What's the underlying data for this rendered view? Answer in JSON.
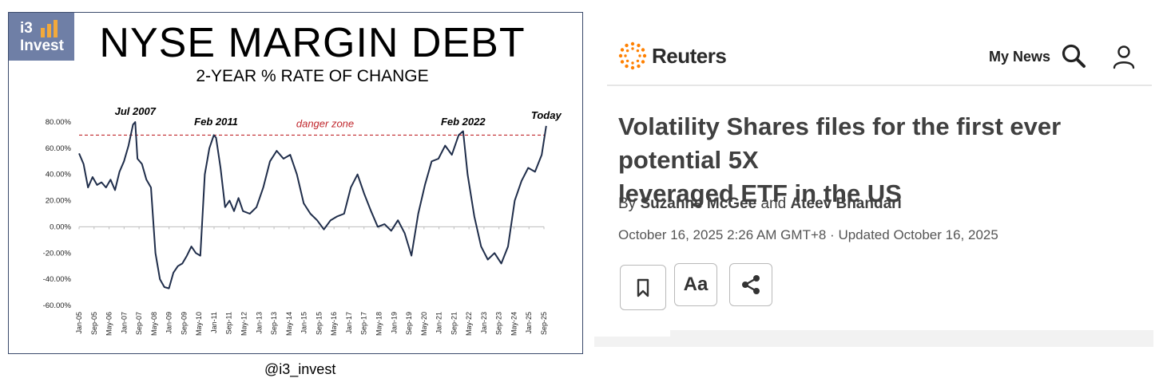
{
  "chart": {
    "logo_line1": "i3",
    "logo_line2": "Invest",
    "title": "NYSE MARGIN DEBT",
    "subtitle": "2-YEAR % RATE OF CHANGE",
    "caption_partial": "@i3_invest",
    "colors": {
      "line": "#1f2d4a",
      "danger": "#c0262c",
      "logo_bg": "#6f7fa6",
      "logo_bars": "#f2a93b"
    }
  },
  "chart_data": {
    "type": "line",
    "title": "NYSE MARGIN DEBT",
    "subtitle": "2-YEAR % RATE OF CHANGE",
    "yticks": [
      "80.00%",
      "60.00%",
      "40.00%",
      "20.00%",
      "0.00%",
      "-20.00%",
      "-40.00%",
      "-60.00%"
    ],
    "ylim": [
      -60,
      80
    ],
    "xticks": [
      "Jan-05",
      "Sep-05",
      "May-06",
      "Jan-07",
      "Sep-07",
      "May-08",
      "Jan-09",
      "Sep-09",
      "May-10",
      "Jan-11",
      "Sep-11",
      "May-12",
      "Jan-13",
      "Sep-13",
      "May-14",
      "Jan-15",
      "Sep-15",
      "May-16",
      "Jan-17",
      "Sep-17",
      "May-18",
      "Jan-19",
      "Sep-19",
      "May-20",
      "Jan-21",
      "Sep-21",
      "May-22",
      "Jan-23",
      "Sep-23",
      "May-24",
      "Jan-25",
      "Sep-25"
    ],
    "danger_level": 70,
    "danger_label": "danger zone",
    "annotations": [
      {
        "text": "Jul 2007",
        "x": 2007.5,
        "y": 80
      },
      {
        "text": "Feb 2011",
        "x": 2011.1,
        "y": 72
      },
      {
        "text": "Feb 2022",
        "x": 2022.1,
        "y": 72
      },
      {
        "text": "Today",
        "x": 2025.8,
        "y": 77
      }
    ],
    "series": [
      {
        "x": [
          2005.0,
          2005.2,
          2005.4,
          2005.6,
          2005.8,
          2006.0,
          2006.2,
          2006.4,
          2006.6,
          2006.8,
          2007.0,
          2007.2,
          2007.4,
          2007.5,
          2007.6,
          2007.8,
          2008.0,
          2008.2,
          2008.4,
          2008.6,
          2008.8,
          2009.0,
          2009.2,
          2009.4,
          2009.6,
          2009.8,
          2010.0,
          2010.2,
          2010.4,
          2010.6,
          2010.8,
          2011.0,
          2011.1,
          2011.3,
          2011.5,
          2011.7,
          2011.9,
          2012.1,
          2012.3,
          2012.6,
          2012.9,
          2013.2,
          2013.5,
          2013.8,
          2014.1,
          2014.4,
          2014.7,
          2015.0,
          2015.3,
          2015.6,
          2015.9,
          2016.2,
          2016.5,
          2016.8,
          2017.1,
          2017.4,
          2017.7,
          2018.0,
          2018.3,
          2018.6,
          2018.9,
          2019.2,
          2019.5,
          2019.8,
          2020.1,
          2020.4,
          2020.7,
          2021.0,
          2021.3,
          2021.6,
          2021.9,
          2022.1,
          2022.3,
          2022.6,
          2022.9,
          2023.2,
          2023.5,
          2023.8,
          2024.1,
          2024.4,
          2024.7,
          2025.0,
          2025.3,
          2025.6,
          2025.8
        ],
        "y": [
          56,
          48,
          30,
          38,
          32,
          34,
          30,
          36,
          28,
          42,
          50,
          62,
          78,
          80,
          52,
          48,
          36,
          30,
          -20,
          -40,
          -46,
          -47,
          -35,
          -30,
          -28,
          -22,
          -15,
          -20,
          -22,
          40,
          60,
          70,
          68,
          45,
          15,
          20,
          12,
          22,
          12,
          10,
          15,
          30,
          50,
          58,
          52,
          55,
          40,
          18,
          10,
          5,
          -2,
          5,
          8,
          10,
          30,
          40,
          25,
          12,
          0,
          2,
          -3,
          5,
          -5,
          -22,
          10,
          32,
          50,
          52,
          62,
          55,
          70,
          73,
          40,
          8,
          -15,
          -25,
          -20,
          -28,
          -15,
          20,
          35,
          45,
          42,
          55,
          77
        ]
      }
    ]
  },
  "article": {
    "brand": "Reuters",
    "nav_mynews": "My News",
    "headline_line1": "Volatility Shares files for the first ever potential 5X",
    "headline_line2": "leveraged ETF in the US",
    "byline_by": "By",
    "author1": "Suzanne McGee",
    "byline_and": "and",
    "author2": "Ateev Bhandari",
    "dateline": "October 16, 2025 2:26 AM GMT+8 · Updated October 16, 2025",
    "btn_text_label": "Aa",
    "accent": "#ff8000"
  },
  "icons": {
    "brand": "reuters-logo-icon",
    "search": "search-icon",
    "user": "user-icon",
    "bookmark": "bookmark-icon",
    "share": "share-icon"
  }
}
